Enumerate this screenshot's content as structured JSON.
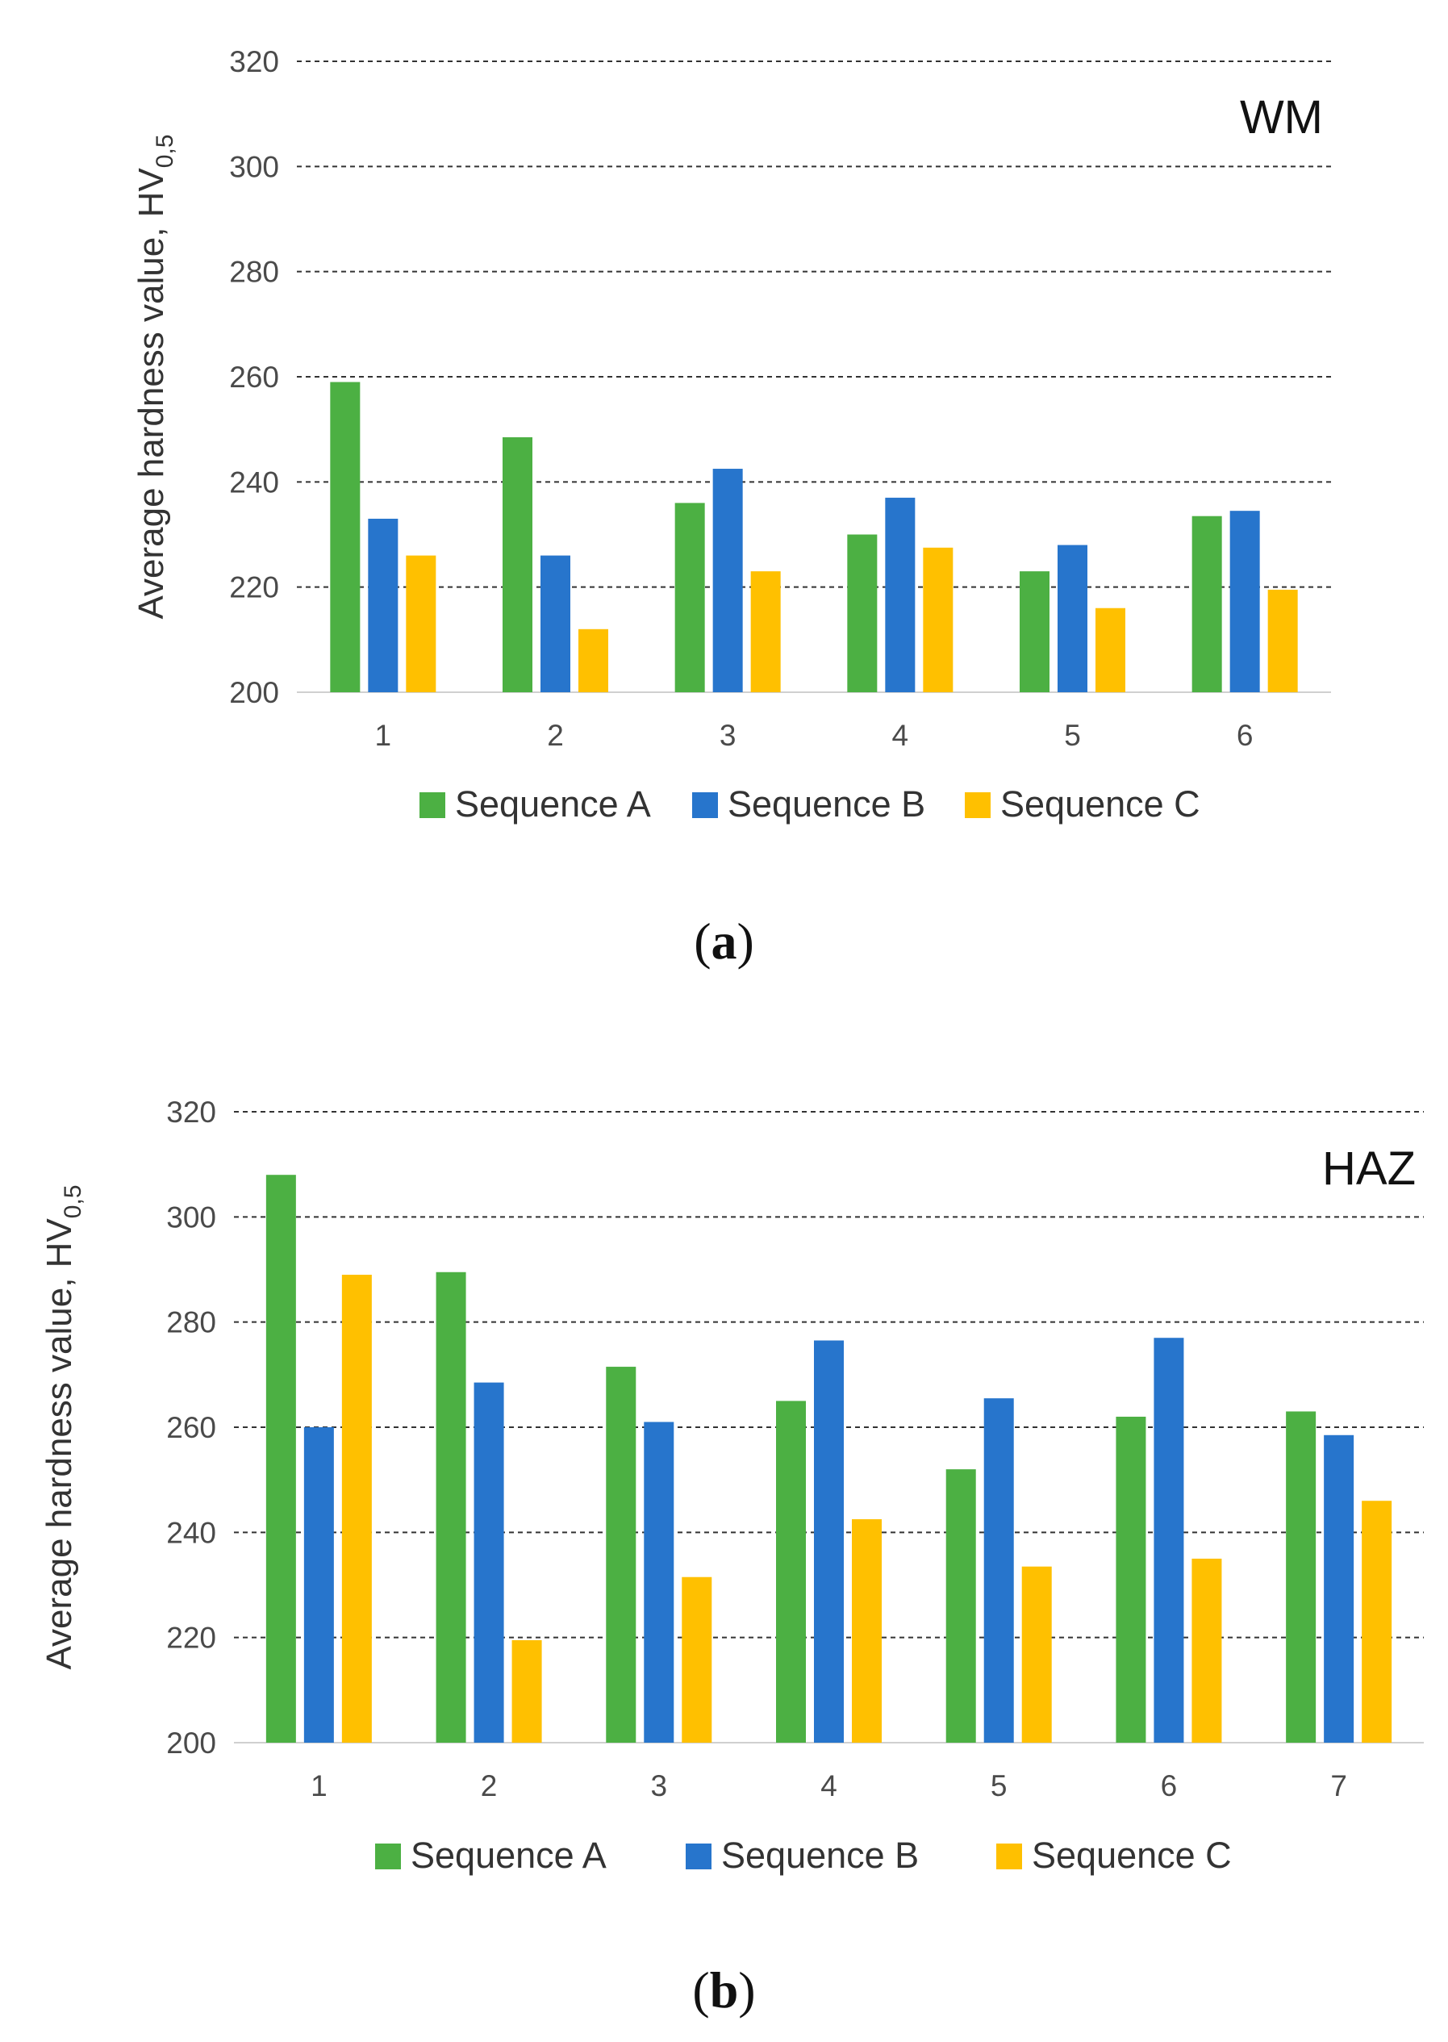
{
  "captions": {
    "a": "a",
    "b": "b"
  },
  "chart_data": [
    {
      "type": "bar",
      "panel_tag": "WM",
      "ylabel": "Average hardness value, HV",
      "ylabel_subscript": "0,5",
      "ylim": [
        200,
        320
      ],
      "yticks": [
        200,
        220,
        240,
        260,
        280,
        300,
        320
      ],
      "grid": true,
      "legend_position": "bottom",
      "categories": [
        "1",
        "2",
        "3",
        "4",
        "5",
        "6"
      ],
      "series": [
        {
          "name": "Sequence A",
          "color": "#4CB043",
          "values": [
            259,
            248.5,
            236,
            230,
            223,
            233.5
          ]
        },
        {
          "name": "Sequence B",
          "color": "#2775CC",
          "values": [
            233,
            226,
            242.5,
            237,
            228,
            234.5
          ]
        },
        {
          "name": "Sequence C",
          "color": "#FFC000",
          "values": [
            226,
            212,
            223,
            227.5,
            216,
            219.5
          ]
        }
      ]
    },
    {
      "type": "bar",
      "panel_tag": "HAZ",
      "ylabel": "Average hardness value, HV",
      "ylabel_subscript": "0,5",
      "ylim": [
        200,
        320
      ],
      "yticks": [
        200,
        220,
        240,
        260,
        280,
        300,
        320
      ],
      "grid": true,
      "legend_position": "bottom",
      "categories": [
        "1",
        "2",
        "3",
        "4",
        "5",
        "6",
        "7"
      ],
      "series": [
        {
          "name": "Sequence A",
          "color": "#4CB043",
          "values": [
            308,
            289.5,
            271.5,
            265,
            252,
            262,
            263
          ]
        },
        {
          "name": "Sequence B",
          "color": "#2775CC",
          "values": [
            260,
            268.5,
            261,
            276.5,
            265.5,
            277,
            258.5
          ]
        },
        {
          "name": "Sequence C",
          "color": "#FFC000",
          "values": [
            289,
            219.5,
            231.5,
            242.5,
            233.5,
            235,
            246
          ]
        }
      ]
    }
  ]
}
